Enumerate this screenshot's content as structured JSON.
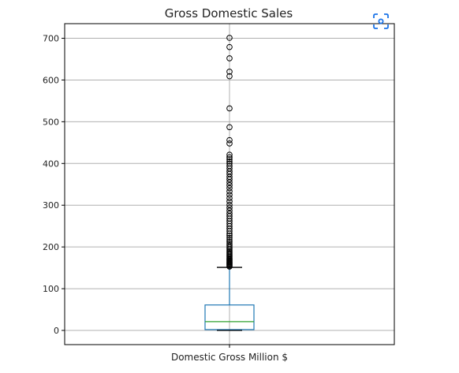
{
  "toolbar": {
    "focus_icon": "focus-scan-icon",
    "accent": "#1a73e8"
  },
  "chart_data": {
    "type": "box",
    "title": "Gross Domestic Sales",
    "xlabel": "",
    "ylabel": "",
    "categories": [
      "Domestic Gross Million $"
    ],
    "ylim": [
      -34,
      735
    ],
    "yticks": [
      0,
      100,
      200,
      300,
      400,
      500,
      600,
      700
    ],
    "grid": true,
    "box": {
      "whisker_low": 0,
      "q1": 2,
      "median": 21,
      "q3": 61,
      "whisker_high": 151
    },
    "outliers": [
      153,
      155,
      157,
      159,
      161,
      163,
      165,
      167,
      169,
      171,
      173,
      176,
      179,
      182,
      185,
      188,
      191,
      195,
      199,
      203,
      207,
      212,
      217,
      222,
      227,
      232,
      238,
      244,
      250,
      256,
      262,
      268,
      274,
      280,
      287,
      294,
      301,
      309,
      317,
      325,
      333,
      341,
      348,
      355,
      362,
      368,
      375,
      381,
      388,
      394,
      400,
      405,
      410,
      415,
      421,
      448,
      456,
      487,
      532,
      609,
      620,
      652,
      679,
      701
    ],
    "colors": {
      "box": "#1f77b4",
      "median": "#2ca02c",
      "whisker": "#1f77b4",
      "cap": "#000000",
      "outlier": "#000000",
      "grid": "#b0b0b0"
    }
  }
}
